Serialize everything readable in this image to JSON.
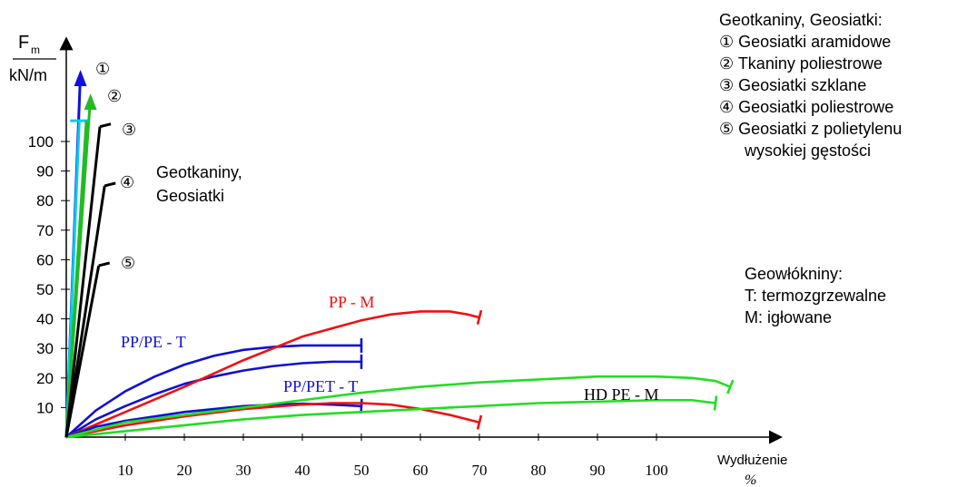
{
  "chart_data": {
    "type": "line",
    "ylabel_top": "F",
    "ylabel_sub": "m",
    "ylabel_unit": "kN/m",
    "xlabel": "Wydłużenie",
    "xlabel_unit": "%",
    "xlim": [
      0,
      115
    ],
    "ylim": [
      0,
      135
    ],
    "x_ticks": [
      10,
      20,
      30,
      40,
      50,
      60,
      70,
      80,
      90,
      100
    ],
    "y_ticks": [
      10,
      20,
      30,
      40,
      50,
      60,
      70,
      80,
      90,
      100
    ],
    "steep_series": [
      {
        "marker": "①",
        "color": "#1010e0",
        "points": [
          [
            0,
            0
          ],
          [
            2.4,
            123
          ]
        ]
      },
      {
        "marker": "②",
        "color": "#22bb22",
        "points": [
          [
            0,
            0
          ],
          [
            4.1,
            115
          ]
        ]
      },
      {
        "marker": "",
        "color": "#00ccee",
        "points": [
          [
            0,
            0
          ],
          [
            2.2,
            107
          ]
        ]
      },
      {
        "marker": "",
        "color": "#22bb22",
        "points": [
          [
            0,
            0
          ],
          [
            3.4,
            107
          ]
        ]
      },
      {
        "marker": "③",
        "color": "#000000",
        "points": [
          [
            0,
            0
          ],
          [
            5.7,
            105
          ]
        ]
      },
      {
        "marker": "④",
        "color": "#000000",
        "points": [
          [
            0,
            0
          ],
          [
            6.5,
            85
          ]
        ]
      },
      {
        "marker": "⑤",
        "color": "#000000",
        "points": [
          [
            0,
            0
          ],
          [
            5.5,
            58
          ]
        ]
      }
    ],
    "series": [
      {
        "label": "PP/PE - T",
        "color": "#1010d0",
        "points": [
          [
            0,
            0
          ],
          [
            5,
            9
          ],
          [
            10,
            15.5
          ],
          [
            15,
            20.5
          ],
          [
            20,
            24.5
          ],
          [
            25,
            27.5
          ],
          [
            30,
            29.5
          ],
          [
            35,
            30.5
          ],
          [
            40,
            31
          ],
          [
            45,
            31
          ],
          [
            50,
            31
          ]
        ]
      },
      {
        "label": "",
        "color": "#1010d0",
        "points": [
          [
            0,
            0
          ],
          [
            5,
            6
          ],
          [
            10,
            10.5
          ],
          [
            15,
            14.5
          ],
          [
            20,
            18
          ],
          [
            25,
            20.5
          ],
          [
            30,
            22.5
          ],
          [
            35,
            24
          ],
          [
            40,
            25
          ],
          [
            45,
            25.5
          ],
          [
            50,
            25.5
          ]
        ]
      },
      {
        "label": "PP - M",
        "color": "#ee1111",
        "points": [
          [
            0,
            0
          ],
          [
            10,
            8.5
          ],
          [
            20,
            17
          ],
          [
            30,
            26
          ],
          [
            40,
            34
          ],
          [
            50,
            39.5
          ],
          [
            55,
            41.5
          ],
          [
            60,
            42.5
          ],
          [
            65,
            42.5
          ],
          [
            68,
            41.5
          ],
          [
            70,
            40.5
          ]
        ]
      },
      {
        "label": "PP/PET - T",
        "color": "#1010d0",
        "points": [
          [
            0,
            0
          ],
          [
            5,
            3.5
          ],
          [
            10,
            5.5
          ],
          [
            15,
            7
          ],
          [
            20,
            8.5
          ],
          [
            25,
            9.5
          ],
          [
            30,
            10.5
          ],
          [
            35,
            11
          ],
          [
            40,
            11.3
          ],
          [
            45,
            11
          ],
          [
            50,
            10.5
          ]
        ]
      },
      {
        "label": "",
        "color": "#ee1111",
        "points": [
          [
            0,
            0
          ],
          [
            10,
            4
          ],
          [
            20,
            7
          ],
          [
            30,
            9.5
          ],
          [
            40,
            11
          ],
          [
            45,
            11.5
          ],
          [
            50,
            11.5
          ],
          [
            55,
            11
          ],
          [
            60,
            9.5
          ],
          [
            65,
            7.5
          ],
          [
            70,
            5
          ]
        ]
      },
      {
        "label": "",
        "color": "#22dd22",
        "points": [
          [
            0,
            0
          ],
          [
            10,
            5
          ],
          [
            20,
            7.5
          ],
          [
            30,
            10
          ],
          [
            40,
            12.5
          ],
          [
            50,
            15
          ],
          [
            60,
            17
          ],
          [
            70,
            18.5
          ],
          [
            80,
            19.5
          ],
          [
            90,
            20.5
          ],
          [
            100,
            20.5
          ],
          [
            106,
            20
          ],
          [
            110,
            19
          ],
          [
            112.5,
            17
          ]
        ]
      },
      {
        "label": "HD PE - M",
        "color": "#22dd22",
        "points": [
          [
            0,
            0
          ],
          [
            10,
            2
          ],
          [
            20,
            4
          ],
          [
            30,
            6
          ],
          [
            40,
            7.5
          ],
          [
            50,
            8.5
          ],
          [
            60,
            9.5
          ],
          [
            70,
            10.5
          ],
          [
            80,
            11.5
          ],
          [
            90,
            12
          ],
          [
            100,
            12.5
          ],
          [
            106,
            12.5
          ],
          [
            110,
            11.5
          ]
        ]
      }
    ],
    "inner_label": [
      "Geotkaniny,",
      "Geosiatki"
    ]
  },
  "legend_top": {
    "title": "Geotkaniny, Geosiatki:",
    "items": [
      "① Geosiatki aramidowe",
      "② Tkaniny poliestrowe",
      "③ Geosiatki szklane",
      "④ Geosiatki poliestrowe",
      "⑤ Geosiatki z polietylenu",
      "wysokiej gęstości"
    ]
  },
  "legend_bottom": {
    "title": "Geowłókniny:",
    "items": [
      "T: termozgrzewalne",
      "M: igłowane"
    ]
  }
}
